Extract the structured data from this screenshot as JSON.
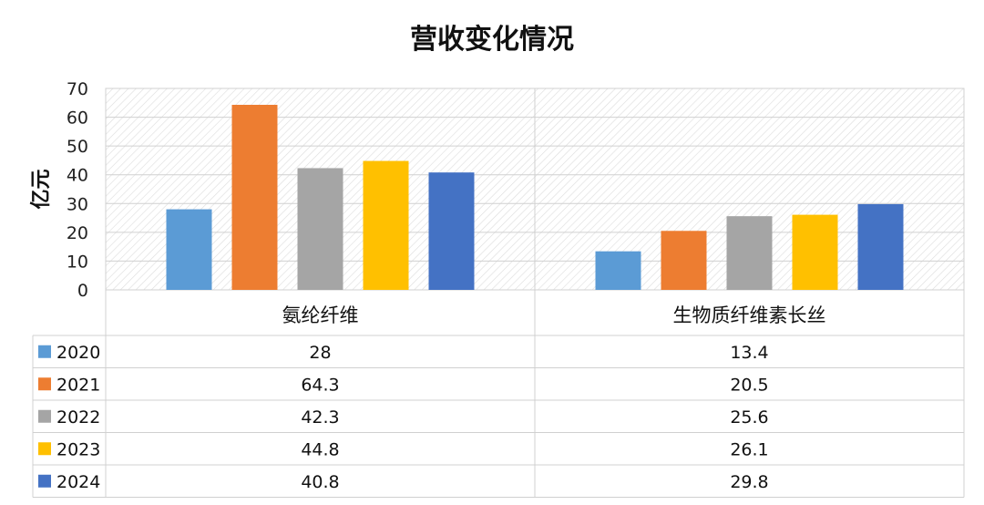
{
  "chart_data": {
    "type": "bar",
    "title": "营收变化情况",
    "ylabel": "亿元",
    "xlabel": "",
    "ylim": [
      0,
      70
    ],
    "yticks": [
      0,
      10,
      20,
      30,
      40,
      50,
      60,
      70
    ],
    "grid": true,
    "legend_placement": "bottom-table",
    "categories": [
      "氨纶纤维",
      "生物质纤维素长丝"
    ],
    "series": [
      {
        "name": "2020",
        "color": "#5B9BD5",
        "values": [
          28,
          13.4
        ],
        "labels": [
          "28",
          "13.4"
        ]
      },
      {
        "name": "2021",
        "color": "#ED7D31",
        "values": [
          64.3,
          20.5
        ],
        "labels": [
          "64.3",
          "20.5"
        ]
      },
      {
        "name": "2022",
        "color": "#A5A5A5",
        "values": [
          42.3,
          25.6
        ],
        "labels": [
          "42.3",
          "25.6"
        ]
      },
      {
        "name": "2023",
        "color": "#FFC000",
        "values": [
          44.8,
          26.1
        ],
        "labels": [
          "44.8",
          "26.1"
        ]
      },
      {
        "name": "2024",
        "color": "#4472C4",
        "values": [
          40.8,
          29.8
        ],
        "labels": [
          "40.8",
          "29.8"
        ]
      }
    ]
  }
}
